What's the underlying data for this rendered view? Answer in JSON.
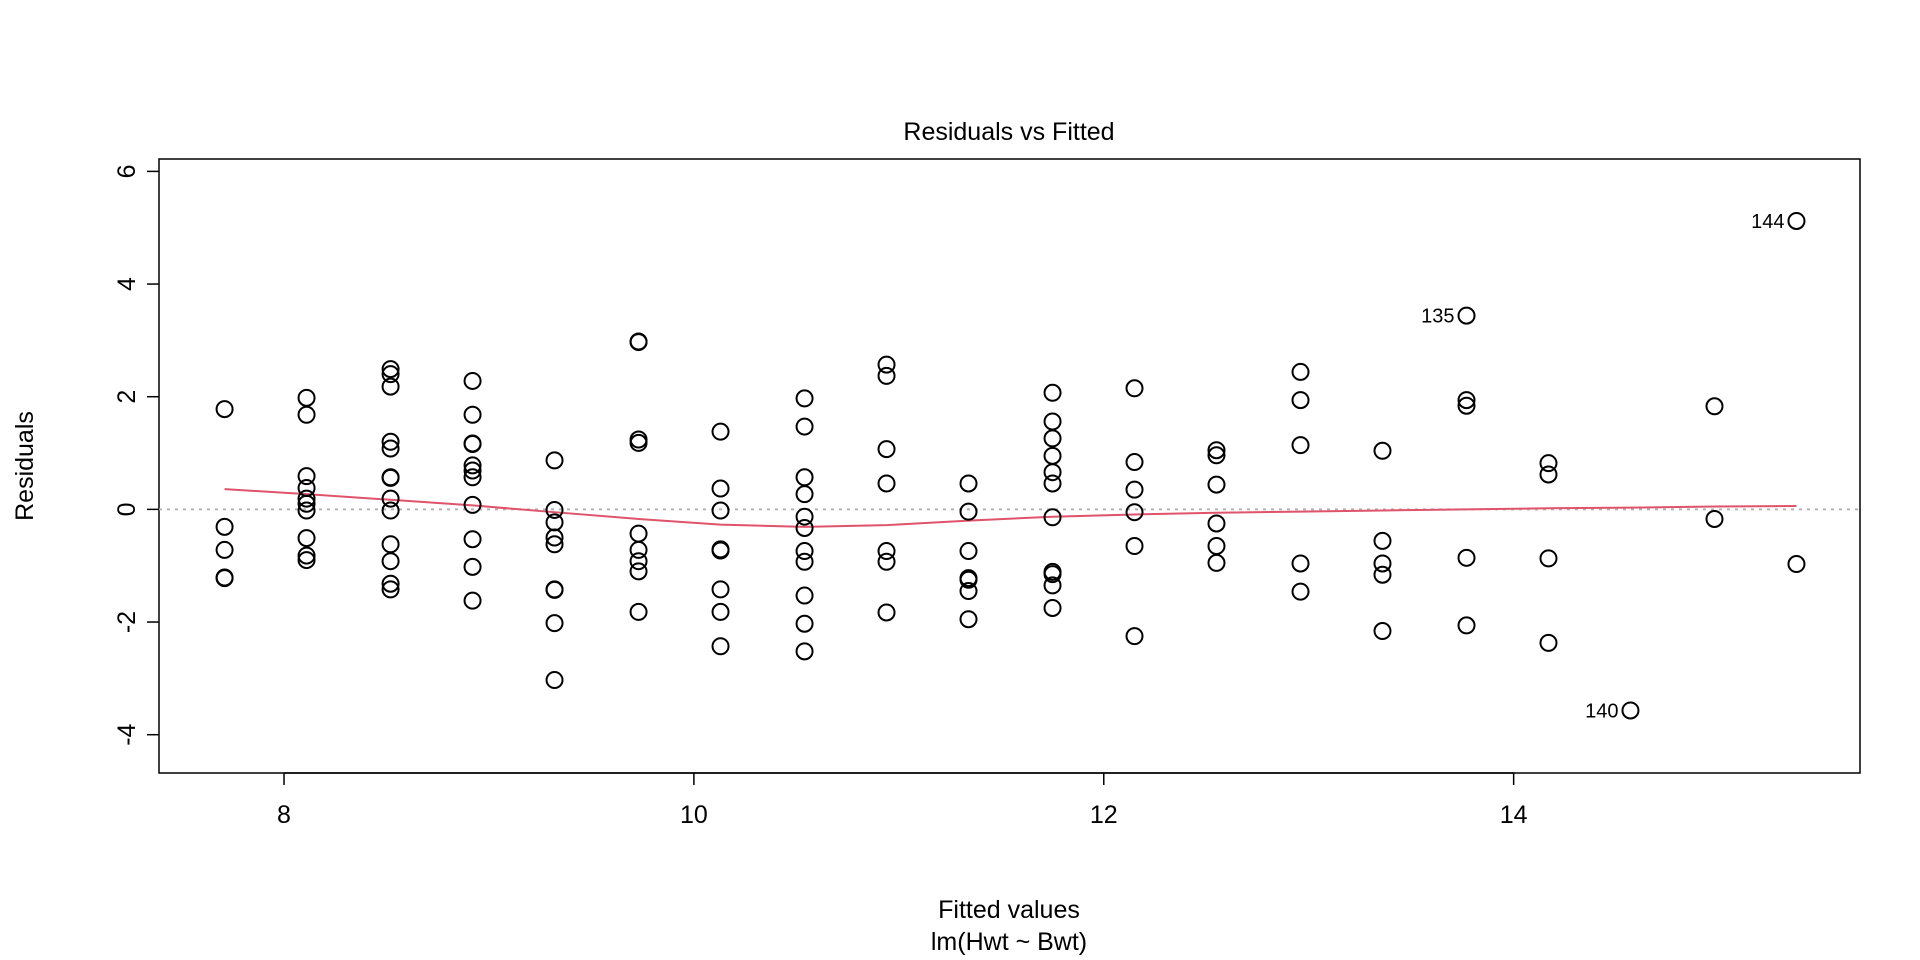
{
  "chart_data": {
    "type": "scatter",
    "title": "Residuals vs Fitted",
    "xlabel": "Fitted values",
    "subtitle": "lm(Hwt ~ Bwt)",
    "ylabel": "Residuals",
    "xlim": [
      7.39,
      15.69
    ],
    "ylim": [
      -4.68,
      6.22
    ],
    "xticks": [
      8,
      10,
      12,
      14
    ],
    "yticks": [
      -4,
      -2,
      0,
      2,
      4,
      6
    ],
    "grid": false,
    "reference_line": {
      "y": 0,
      "style": "dotted",
      "color": "#b3b3b3"
    },
    "colors": {
      "points": "#000000",
      "smoother": "#df536b"
    },
    "columns": [
      {
        "x": 7.71,
        "r": [
          1.78,
          -0.31,
          -0.72,
          -1.21,
          -1.22
        ]
      },
      {
        "x": 8.11,
        "r": [
          1.98,
          1.68,
          0.59,
          0.38,
          0.19,
          0.1,
          -0.02,
          -0.51,
          -0.82,
          -0.9
        ]
      },
      {
        "x": 8.52,
        "r": [
          2.49,
          2.4,
          2.18,
          1.2,
          1.08,
          0.57,
          0.56,
          0.19,
          -0.02,
          -0.62,
          -0.92,
          -1.32,
          -1.42
        ]
      },
      {
        "x": 8.92,
        "r": [
          2.28,
          1.68,
          1.17,
          1.16,
          0.78,
          0.69,
          0.57,
          0.08,
          -0.53,
          -1.02,
          -1.62
        ]
      },
      {
        "x": 9.32,
        "r": [
          0.87,
          -0.01,
          -0.23,
          -0.5,
          -0.62,
          -1.42,
          -1.43,
          -2.02,
          -3.03
        ]
      },
      {
        "x": 9.73,
        "r": [
          2.98,
          2.97,
          1.24,
          1.18,
          -0.43,
          -0.72,
          -0.92,
          -1.1,
          -1.82
        ]
      },
      {
        "x": 10.13,
        "r": [
          1.38,
          0.37,
          -0.02,
          -0.71,
          -0.73,
          -1.42,
          -1.82,
          -2.43
        ]
      },
      {
        "x": 10.54,
        "r": [
          1.97,
          1.47,
          0.57,
          0.27,
          -0.13,
          -0.33,
          -0.74,
          -0.93,
          -1.53,
          -2.03,
          -2.52
        ]
      },
      {
        "x": 10.94,
        "r": [
          2.57,
          2.37,
          1.07,
          0.46,
          -0.74,
          -0.93,
          -1.83
        ]
      },
      {
        "x": 11.34,
        "r": [
          0.46,
          -0.04,
          -0.74,
          -1.22,
          -1.25,
          -1.45,
          -1.95
        ]
      },
      {
        "x": 11.75,
        "r": [
          2.07,
          1.56,
          1.26,
          0.95,
          0.66,
          0.46,
          -0.14,
          -1.11,
          -1.15,
          -1.35,
          -1.75
        ]
      },
      {
        "x": 12.15,
        "r": [
          2.15,
          0.84,
          0.35,
          -0.05,
          -0.65,
          -2.25
        ]
      },
      {
        "x": 12.55,
        "r": [
          1.05,
          0.96,
          0.44,
          -0.25,
          -0.65,
          -0.95
        ]
      },
      {
        "x": 12.96,
        "r": [
          2.44,
          1.94,
          1.14,
          -0.96,
          -1.46
        ]
      },
      {
        "x": 13.36,
        "r": [
          1.04,
          -0.56,
          -0.96,
          -1.16,
          -2.16
        ]
      },
      {
        "x": 13.77,
        "r": [
          3.44,
          1.94,
          1.84,
          -0.86,
          -2.06
        ]
      },
      {
        "x": 14.17,
        "r": [
          0.82,
          0.62,
          -0.87,
          -2.37
        ]
      },
      {
        "x": 14.57,
        "r": [
          -3.57
        ]
      },
      {
        "x": 14.98,
        "r": [
          1.83,
          -0.17
        ]
      },
      {
        "x": 15.38,
        "r": [
          5.12,
          -0.97
        ]
      }
    ],
    "labeled_points": [
      {
        "label": "144",
        "x": 15.38,
        "y": 5.12
      },
      {
        "label": "135",
        "x": 13.77,
        "y": 3.44
      },
      {
        "label": "140",
        "x": 14.57,
        "y": -3.57
      }
    ],
    "smoother": {
      "x": [
        7.71,
        8.11,
        8.52,
        8.92,
        9.32,
        9.73,
        10.13,
        10.54,
        10.94,
        11.34,
        11.75,
        12.15,
        12.55,
        12.96,
        13.36,
        13.77,
        14.17,
        14.57,
        14.98,
        15.38
      ],
      "y": [
        0.36,
        0.27,
        0.17,
        0.07,
        -0.05,
        -0.17,
        -0.27,
        -0.31,
        -0.28,
        -0.2,
        -0.13,
        -0.09,
        -0.06,
        -0.04,
        -0.02,
        0.0,
        0.02,
        0.03,
        0.05,
        0.06
      ]
    }
  }
}
